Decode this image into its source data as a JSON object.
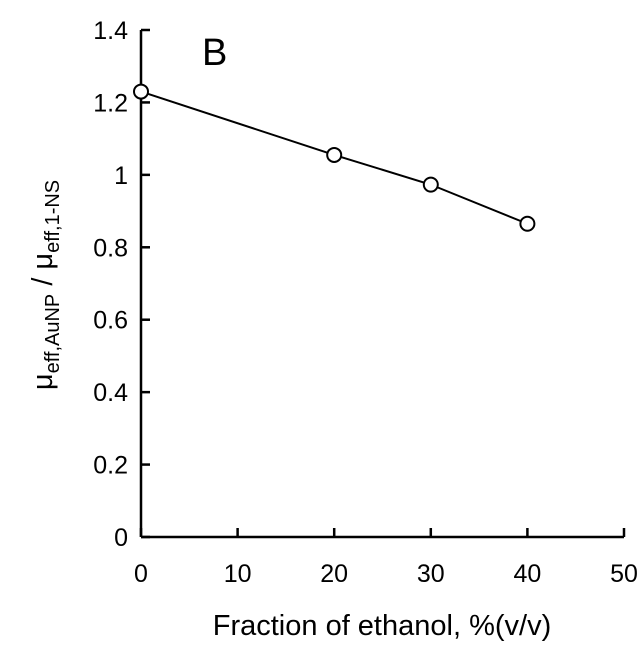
{
  "chart_data": {
    "type": "line",
    "panel_label": "B",
    "xlabel": "Fraction of ethanol, %(v/v)",
    "ylabel": {
      "numerator": "μ",
      "numerator_sub": "eff,AuNP",
      "separator": " / ",
      "denominator": "μ",
      "denominator_sub": "eff,1-NS"
    },
    "xlim": [
      0,
      50
    ],
    "ylim": [
      0,
      1.4
    ],
    "xticks": [
      0,
      10,
      20,
      30,
      40,
      50
    ],
    "xtick_labels": [
      "0",
      "10",
      "20",
      "30",
      "40",
      "50"
    ],
    "yticks": [
      0,
      0.2,
      0.4,
      0.6,
      0.8,
      1.0,
      1.2,
      1.4
    ],
    "ytick_labels": [
      "0",
      "0.2",
      "0.4",
      "0.6",
      "0.8",
      "1",
      "1.2",
      "1.4"
    ],
    "grid": false,
    "legend": "none",
    "series": [
      {
        "x": [
          0,
          20,
          30,
          40
        ],
        "y": [
          1.23,
          1.055,
          0.973,
          0.865
        ],
        "marker": "open-circle",
        "line_color": "#000000"
      }
    ]
  }
}
